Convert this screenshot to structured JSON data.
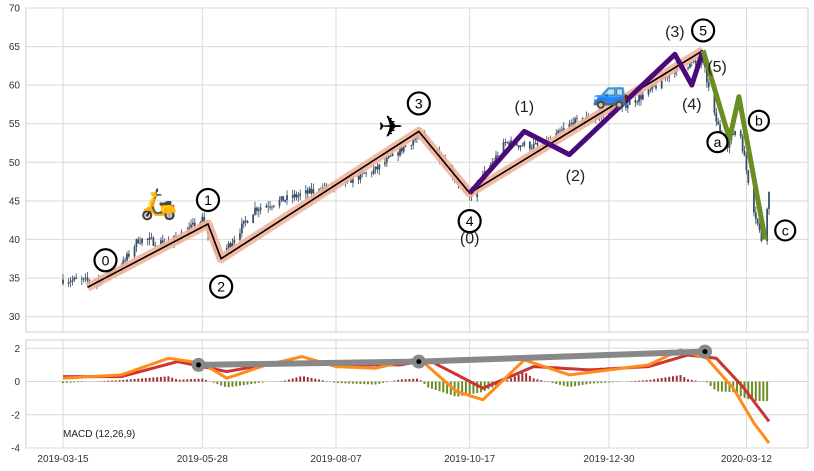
{
  "chart_data": [
    {
      "type": "candlestick",
      "panel": "price",
      "ylim": [
        28,
        70
      ],
      "y_ticks": [
        30,
        35,
        40,
        45,
        50,
        55,
        60,
        65,
        70
      ],
      "x_ticks": [
        "2019-03-15",
        "2019-05-28",
        "2019-08-07",
        "2019-10-17",
        "2019-12-30",
        "2020-03-12"
      ],
      "grid": true,
      "price_path": [
        [
          "2019-03-15",
          34.8
        ],
        [
          "2019-04-01",
          34.5
        ],
        [
          "2019-04-15",
          36.5
        ],
        [
          "2019-04-24",
          40
        ],
        [
          "2019-05-10",
          39.5
        ],
        [
          "2019-05-28",
          42.5
        ],
        [
          "2019-06-06",
          37.5
        ],
        [
          "2019-06-25",
          44
        ],
        [
          "2019-07-15",
          45.5
        ],
        [
          "2019-08-07",
          47
        ],
        [
          "2019-08-28",
          49
        ],
        [
          "2019-09-20",
          53.5
        ],
        [
          "2019-10-01",
          51
        ],
        [
          "2019-10-17",
          45.5
        ],
        [
          "2019-11-05",
          52.5
        ],
        [
          "2019-11-25",
          52
        ],
        [
          "2019-12-10",
          55
        ],
        [
          "2019-12-30",
          56.5
        ],
        [
          "2020-01-20",
          59
        ],
        [
          "2020-02-04",
          62.5
        ],
        [
          "2020-02-18",
          63
        ],
        [
          "2020-02-24",
          56
        ],
        [
          "2020-03-01",
          52
        ],
        [
          "2020-03-08",
          55
        ],
        [
          "2020-03-12",
          49
        ],
        [
          "2020-03-16",
          44
        ],
        [
          "2020-03-20",
          40
        ],
        [
          "2020-03-24",
          46
        ]
      ],
      "primary_wave": {
        "points": [
          [
            "2019-03-28",
            33.8
          ],
          [
            "2019-05-31",
            42
          ],
          [
            "2019-06-07",
            37.5
          ],
          [
            "2019-09-20",
            54
          ],
          [
            "2019-10-17",
            46
          ],
          [
            "2020-02-18",
            64.5
          ]
        ],
        "labels": [
          "0",
          "1",
          "2",
          "3",
          "4",
          "5"
        ],
        "line_color": "#000000",
        "band_color": "#f2b29a"
      },
      "sub_wave": {
        "points": [
          [
            "2019-10-17",
            46
          ],
          [
            "2019-11-15",
            54
          ],
          [
            "2019-12-09",
            51
          ],
          [
            "2020-02-03",
            64
          ],
          [
            "2020-02-12",
            60
          ],
          [
            "2020-02-18",
            64.5
          ]
        ],
        "labels": [
          "(0)",
          "(1)",
          "(2)",
          "(3)",
          "(4)",
          "(5)"
        ],
        "color": "#4b0a7a"
      },
      "correction_wave": {
        "points": [
          [
            "2020-02-18",
            64.5
          ],
          [
            "2020-03-03",
            53
          ],
          [
            "2020-03-08",
            58.5
          ],
          [
            "2020-03-22",
            40
          ]
        ],
        "labels": [
          "a",
          "b",
          "c"
        ],
        "color": "#6b8e23"
      },
      "icons": [
        {
          "name": "scooter-icon",
          "glyph": "🛵",
          "x": "2019-05-05",
          "y": 44.5
        },
        {
          "name": "airplane-icon",
          "glyph": "✈",
          "x": "2019-09-05",
          "y": 54.5
        },
        {
          "name": "car-icon",
          "glyph": "🚙",
          "x": "2019-12-31",
          "y": 59
        }
      ]
    },
    {
      "type": "line",
      "panel": "macd",
      "title": "MACD (12,26,9)",
      "ylim": [
        -4,
        2.5
      ],
      "y_ticks": [
        -4,
        -2,
        0,
        2
      ],
      "series": [
        {
          "color": "#ff8c1a",
          "points": [
            [
              "2019-03-15",
              0.2
            ],
            [
              "2019-04-15",
              0.4
            ],
            [
              "2019-05-10",
              1.4
            ],
            [
              "2019-05-28",
              1.1
            ],
            [
              "2019-06-10",
              0.2
            ],
            [
              "2019-07-01",
              1.0
            ],
            [
              "2019-07-20",
              1.5
            ],
            [
              "2019-08-07",
              0.9
            ],
            [
              "2019-08-28",
              0.8
            ],
            [
              "2019-09-20",
              1.4
            ],
            [
              "2019-10-10",
              -0.6
            ],
            [
              "2019-10-24",
              -1.1
            ],
            [
              "2019-11-15",
              1.3
            ],
            [
              "2019-12-09",
              0.4
            ],
            [
              "2019-12-30",
              0.7
            ],
            [
              "2020-01-20",
              1.0
            ],
            [
              "2020-02-06",
              1.9
            ],
            [
              "2020-02-20",
              1.4
            ],
            [
              "2020-03-05",
              -0.4
            ],
            [
              "2020-03-16",
              -2.5
            ],
            [
              "2020-03-24",
              -3.7
            ]
          ]
        },
        {
          "color": "#cc3333",
          "points": [
            [
              "2019-03-15",
              0.3
            ],
            [
              "2019-04-15",
              0.3
            ],
            [
              "2019-05-15",
              1.2
            ],
            [
              "2019-06-10",
              0.6
            ],
            [
              "2019-07-10",
              1.2
            ],
            [
              "2019-08-07",
              1.0
            ],
            [
              "2019-09-10",
              1.0
            ],
            [
              "2019-09-25",
              1.3
            ],
            [
              "2019-10-24",
              -0.4
            ],
            [
              "2019-11-20",
              0.9
            ],
            [
              "2019-12-20",
              0.7
            ],
            [
              "2020-01-20",
              0.9
            ],
            [
              "2020-02-10",
              1.6
            ],
            [
              "2020-02-25",
              1.4
            ],
            [
              "2020-03-10",
              -0.3
            ],
            [
              "2020-03-24",
              -2.4
            ]
          ]
        }
      ],
      "trendline": {
        "color": "#888888",
        "points": [
          [
            "2019-05-26",
            1.0
          ],
          [
            "2019-09-20",
            1.2
          ],
          [
            "2020-02-19",
            1.8
          ]
        ]
      },
      "histogram": {
        "pos_color": "#a03030",
        "neg_color": "#6b8e23"
      }
    }
  ]
}
